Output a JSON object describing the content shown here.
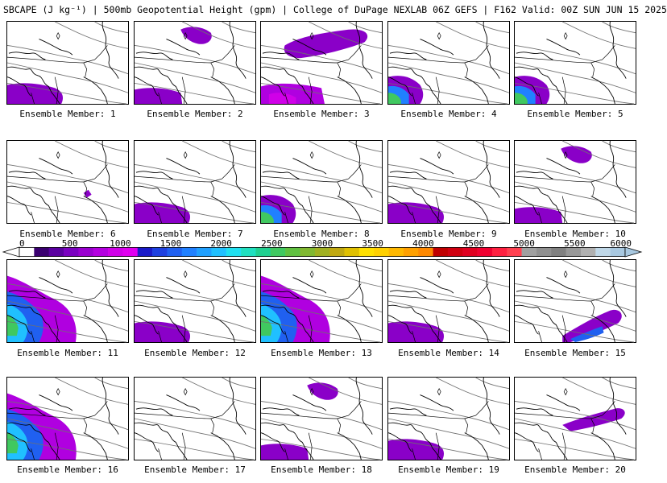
{
  "title": "SBCAPE (J kg⁻¹) | 500mb Geopotential Height (gpm) | College of DuPage NEXLAB 06Z GEFS | F162 Valid: 00Z SUN JUN 15 2025",
  "label_prefix": "Ensemble Member:",
  "members": [
    {
      "label": "Ensemble Member: 1",
      "cape": "sw"
    },
    {
      "label": "Ensemble Member: 2",
      "cape": "sw-ne"
    },
    {
      "label": "Ensemble Member: 3",
      "cape": "north-sw"
    },
    {
      "label": "Ensemble Member: 4",
      "cape": "sw-strong"
    },
    {
      "label": "Ensemble Member: 5",
      "cape": "sw-strong"
    },
    {
      "label": "Ensemble Member: 6",
      "cape": "small"
    },
    {
      "label": "Ensemble Member: 7",
      "cape": "sw"
    },
    {
      "label": "Ensemble Member: 8",
      "cape": "sw-strong"
    },
    {
      "label": "Ensemble Member: 9",
      "cape": "sw"
    },
    {
      "label": "Ensemble Member: 10",
      "cape": "sw-ne"
    },
    {
      "label": "Ensemble Member: 11",
      "cape": "west-strong"
    },
    {
      "label": "Ensemble Member: 12",
      "cape": "sw"
    },
    {
      "label": "Ensemble Member: 13",
      "cape": "west-strong"
    },
    {
      "label": "Ensemble Member: 14",
      "cape": "sw"
    },
    {
      "label": "Ensemble Member: 15",
      "cape": "se"
    },
    {
      "label": "Ensemble Member: 16",
      "cape": "west-strong"
    },
    {
      "label": "Ensemble Member: 17",
      "cape": "none"
    },
    {
      "label": "Ensemble Member: 18",
      "cape": "sw-ne"
    },
    {
      "label": "Ensemble Member: 19",
      "cape": "sw"
    },
    {
      "label": "Ensemble Member: 20",
      "cape": "ne"
    }
  ],
  "colorbar": {
    "ticks": [
      "0",
      "500",
      "1000",
      "1500",
      "2000",
      "2500",
      "3000",
      "3500",
      "4000",
      "4500",
      "5000",
      "5500",
      "6000"
    ],
    "min": 0,
    "max": 6000,
    "colors": [
      "#ffffff",
      "#3a0070",
      "#5a00a0",
      "#7a00c0",
      "#9a00d0",
      "#b400e0",
      "#d000e8",
      "#e000f0",
      "#1a1ac8",
      "#1e40e0",
      "#2060f0",
      "#2080ff",
      "#20a0ff",
      "#20c0ff",
      "#20e0f0",
      "#20e0c0",
      "#20d090",
      "#40c860",
      "#60c040",
      "#80b830",
      "#a0b020",
      "#c0a810",
      "#e0c000",
      "#ffe000",
      "#ffd000",
      "#ffb800",
      "#ffa000",
      "#ff8800",
      "#c00000",
      "#d00010",
      "#e00020",
      "#f00030",
      "#ff2040",
      "#ff4050",
      "#a0a0a0",
      "#909090",
      "#808080",
      "#989898",
      "#b0b0b0",
      "#c0d8e8",
      "#a8c8e0"
    ]
  }
}
